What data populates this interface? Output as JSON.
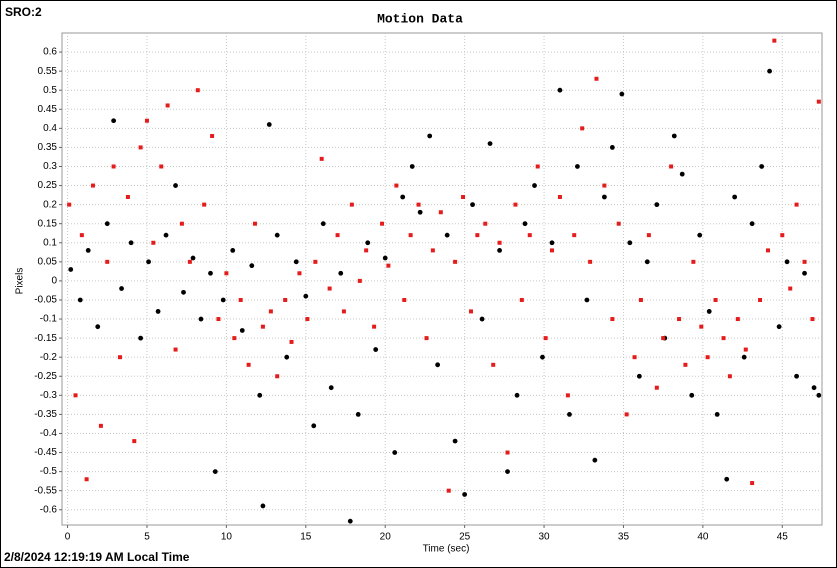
{
  "corner_label": "SRO:2",
  "footer": "2/8/2024 12:19:19 AM Local Time",
  "chart_data": {
    "type": "scatter",
    "title": "Motion Data",
    "x_label": "Time (sec)",
    "y_label": "Pixels",
    "xlim": [
      -0.35,
      47.5
    ],
    "ylim": [
      -0.64,
      0.65
    ],
    "xticks": [
      0,
      5,
      10,
      15,
      20,
      25,
      30,
      35,
      40,
      45
    ],
    "yticks": [
      0.6,
      0.55,
      0.5,
      0.45,
      0.4,
      0.35,
      0.3,
      0.25,
      0.2,
      0.15,
      0.1,
      0.05,
      0,
      -0.05,
      -0.1,
      -0.15,
      -0.2,
      -0.25,
      -0.3,
      -0.35,
      -0.4,
      -0.45,
      -0.5,
      -0.55,
      -0.6
    ],
    "grid": true,
    "series": [
      {
        "color": "#000000",
        "marker": "circle",
        "x": [
          0.2,
          0.8,
          1.3,
          1.9,
          2.5,
          2.9,
          3.4,
          4.0,
          4.6,
          5.1,
          5.7,
          6.2,
          6.8,
          7.3,
          7.9,
          8.4,
          9.0,
          9.3,
          9.8,
          10.4,
          11.0,
          11.6,
          12.1,
          12.3,
          12.7,
          13.2,
          13.8,
          14.4,
          15.0,
          15.5,
          16.1,
          16.6,
          17.2,
          17.8,
          18.3,
          18.9,
          19.4,
          20.0,
          20.6,
          21.1,
          21.7,
          22.2,
          22.8,
          23.3,
          23.9,
          24.4,
          25.0,
          25.5,
          26.1,
          26.6,
          27.2,
          27.7,
          28.3,
          28.8,
          29.4,
          29.9,
          30.5,
          31.0,
          31.6,
          32.1,
          32.7,
          33.2,
          33.8,
          34.3,
          34.9,
          35.4,
          36.0,
          36.5,
          37.1,
          37.6,
          38.2,
          38.7,
          39.3,
          39.8,
          40.4,
          40.9,
          41.5,
          42.0,
          42.6,
          43.1,
          43.7,
          44.2,
          44.8,
          45.3,
          45.9,
          46.4,
          47.0,
          47.3
        ],
        "values": [
          0.03,
          -0.05,
          0.08,
          -0.12,
          0.15,
          0.42,
          -0.02,
          0.1,
          -0.15,
          0.05,
          -0.08,
          0.12,
          0.25,
          -0.03,
          0.06,
          -0.1,
          0.02,
          -0.5,
          -0.05,
          0.08,
          -0.13,
          0.04,
          -0.3,
          -0.59,
          0.41,
          0.12,
          -0.2,
          0.05,
          -0.04,
          -0.38,
          0.15,
          -0.28,
          0.02,
          -0.63,
          -0.35,
          0.1,
          -0.18,
          0.06,
          -0.45,
          0.22,
          0.3,
          0.18,
          0.38,
          -0.22,
          0.12,
          -0.42,
          -0.56,
          0.2,
          -0.1,
          0.36,
          0.08,
          -0.5,
          -0.3,
          0.15,
          0.25,
          -0.2,
          0.1,
          0.5,
          -0.35,
          0.3,
          -0.05,
          -0.47,
          0.22,
          0.35,
          0.49,
          0.1,
          -0.25,
          0.05,
          0.2,
          -0.15,
          0.38,
          0.28,
          -0.3,
          0.12,
          -0.08,
          -0.35,
          -0.52,
          0.22,
          -0.2,
          0.15,
          0.3,
          0.55,
          -0.12,
          0.05,
          -0.25,
          0.02,
          -0.28,
          -0.3
        ]
      },
      {
        "color": "#e51c1c",
        "marker": "square",
        "x": [
          0.1,
          0.5,
          0.9,
          1.2,
          1.6,
          2.1,
          2.5,
          2.9,
          3.3,
          3.8,
          4.2,
          4.6,
          5.0,
          5.4,
          5.9,
          6.3,
          6.8,
          7.2,
          7.7,
          8.2,
          8.6,
          9.1,
          9.5,
          10.0,
          10.5,
          10.9,
          11.4,
          11.8,
          12.3,
          12.8,
          13.2,
          13.7,
          14.1,
          14.6,
          15.1,
          15.6,
          16.0,
          16.5,
          17.0,
          17.4,
          17.9,
          18.4,
          18.8,
          19.3,
          19.8,
          20.2,
          20.7,
          21.2,
          21.6,
          22.1,
          22.6,
          23.0,
          23.5,
          24.0,
          24.4,
          24.9,
          25.4,
          25.8,
          26.3,
          26.8,
          27.2,
          27.7,
          28.2,
          28.6,
          29.1,
          29.6,
          30.1,
          30.5,
          31.0,
          31.5,
          31.9,
          32.4,
          32.9,
          33.3,
          33.8,
          34.3,
          34.7,
          35.2,
          35.7,
          36.1,
          36.6,
          37.1,
          37.5,
          38.0,
          38.5,
          38.9,
          39.4,
          39.9,
          40.3,
          40.8,
          41.3,
          41.7,
          42.2,
          42.7,
          43.1,
          43.6,
          44.1,
          44.5,
          45.0,
          45.5,
          45.9,
          46.4,
          46.9,
          47.3
        ],
        "values": [
          0.2,
          -0.3,
          0.12,
          -0.52,
          0.25,
          -0.38,
          0.05,
          0.3,
          -0.2,
          0.22,
          -0.42,
          0.35,
          0.42,
          0.1,
          0.3,
          0.46,
          -0.18,
          0.15,
          0.05,
          0.5,
          0.2,
          0.38,
          -0.1,
          0.02,
          -0.15,
          -0.05,
          -0.22,
          0.15,
          -0.12,
          -0.08,
          -0.25,
          -0.05,
          -0.16,
          0.02,
          -0.1,
          0.05,
          0.32,
          -0.02,
          0.12,
          -0.08,
          0.2,
          0,
          0.08,
          -0.12,
          0.15,
          0.04,
          0.25,
          -0.05,
          0.12,
          0.2,
          -0.15,
          0.08,
          0.18,
          -0.55,
          0.05,
          0.22,
          -0.08,
          0.12,
          0.15,
          -0.22,
          0.1,
          -0.45,
          0.2,
          -0.05,
          0.12,
          0.3,
          -0.15,
          0.08,
          0.22,
          -0.3,
          0.12,
          0.4,
          0.05,
          0.53,
          0.25,
          -0.1,
          0.15,
          -0.35,
          -0.2,
          -0.05,
          0.12,
          -0.28,
          -0.15,
          0.3,
          -0.1,
          -0.22,
          0.05,
          -0.12,
          -0.2,
          -0.05,
          -0.15,
          -0.25,
          -0.1,
          -0.18,
          -0.53,
          -0.05,
          0.08,
          0.63,
          0.12,
          -0.02,
          0.2,
          0.05,
          -0.1,
          0.47
        ]
      }
    ]
  }
}
